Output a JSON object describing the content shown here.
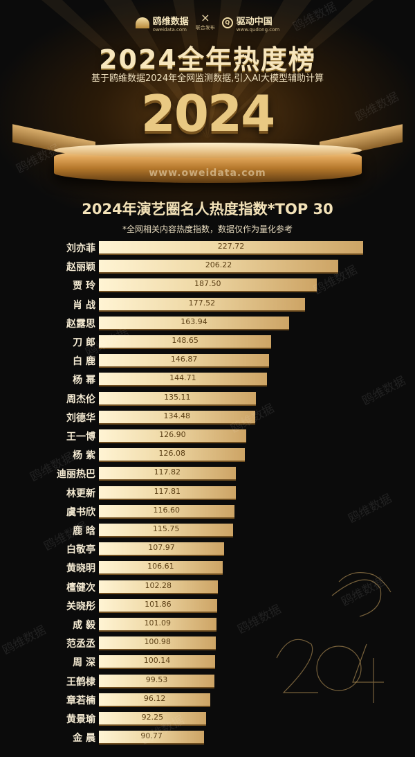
{
  "header": {
    "brand_name": "鸥维数据",
    "brand_url": "oweidata.com",
    "cross": "×",
    "joint_label": "联合发布",
    "partner_name": "驱动中国",
    "partner_url": "www.qudong.com"
  },
  "title": "2024全年热度榜",
  "subtitle": "基于鸥维数据2024年全网监测数据,引入AI大模型辅助计算",
  "big_year": "2024",
  "website": "www.oweidata.com",
  "watermark": "鸥维数据",
  "chart_data": {
    "type": "bar",
    "orientation": "horizontal",
    "title": "2024年演艺圈名人热度指数*TOP 30",
    "note": "*全网相关内容热度指数，数据仅作为量化参考",
    "categories": [
      "刘亦菲",
      "赵丽颖",
      "贾 玲",
      "肖 战",
      "赵露思",
      "刀 郎",
      "白 鹿",
      "杨 幂",
      "周杰伦",
      "刘德华",
      "王一博",
      "杨 紫",
      "迪丽热巴",
      "林更新",
      "虞书欣",
      "鹿 晗",
      "白敬亭",
      "黄晓明",
      "檀健次",
      "关晓彤",
      "成 毅",
      "范丞丞",
      "周 深",
      "王鹤棣",
      "章若楠",
      "黄景瑜",
      "金 晨"
    ],
    "values": [
      227.72,
      206.22,
      187.5,
      177.52,
      163.94,
      148.65,
      146.87,
      144.71,
      135.11,
      134.48,
      126.9,
      126.08,
      117.82,
      117.81,
      116.6,
      115.75,
      107.97,
      106.61,
      102.28,
      101.86,
      101.09,
      100.98,
      100.14,
      99.53,
      96.12,
      92.25,
      90.77
    ],
    "value_labels": [
      "227.72",
      "206.22",
      "187.50",
      "177.52",
      "163.94",
      "148.65",
      "146.87",
      "144.71",
      "135.11",
      "134.48",
      "126.90",
      "126.08",
      "117.82",
      "117.81",
      "116.60",
      "115.75",
      "107.97",
      "106.61",
      "102.28",
      "101.86",
      "101.09",
      "100.98",
      "100.14",
      "99.53",
      "96.12",
      "92.25",
      "90.77"
    ],
    "bar_color": "#efd9a6",
    "label_color": "#5a3e14",
    "grid": false
  },
  "colors": {
    "background": "#0b0b0b",
    "gold": "#e9c983"
  }
}
